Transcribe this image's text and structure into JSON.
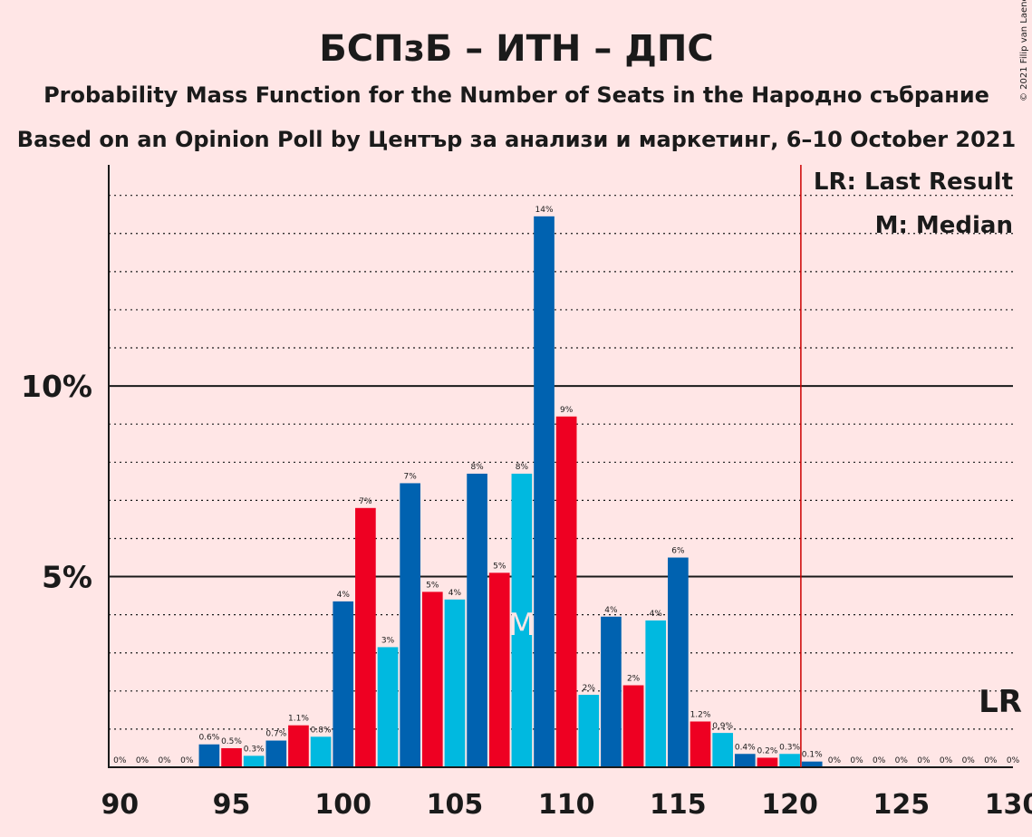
{
  "chart_data": {
    "type": "bar",
    "title": "БСПзБ – ИТН – ДПС",
    "subtitle": "Probability Mass Function for the Number of Seats in the Народно събрание",
    "subtitle2": "Based on an Opinion Poll by Център за анализи и маркетинг, 6–10 October 2021",
    "credit": "© 2021 Filip van Laenen",
    "legend": {
      "lr": "LR: Last Result",
      "m": "M: Median",
      "placement": "top-right"
    },
    "lr_marker": "LR",
    "median_marker": "M",
    "median": 108,
    "last_result": 121,
    "ylim": [
      0,
      15.8
    ],
    "ytick_values": [
      5,
      10
    ],
    "ytick_labels": [
      "5%",
      "10%"
    ],
    "xtick_values": [
      90,
      95,
      100,
      105,
      110,
      115,
      120,
      125,
      130
    ],
    "xtick_labels": [
      "90",
      "95",
      "100",
      "105",
      "110",
      "115",
      "120",
      "125",
      "130"
    ],
    "x": [
      90,
      91,
      92,
      93,
      94,
      95,
      96,
      97,
      98,
      99,
      100,
      101,
      102,
      103,
      104,
      105,
      106,
      107,
      108,
      109,
      110,
      111,
      112,
      113,
      114,
      115,
      116,
      117,
      118,
      119,
      120,
      121,
      122,
      123,
      124,
      125,
      126,
      127,
      128,
      129,
      130
    ],
    "values": [
      0,
      0,
      0,
      0,
      0.6,
      0.5,
      0.3,
      0.7,
      1.1,
      0.8,
      4.35,
      6.8,
      3.15,
      7.45,
      4.6,
      4.4,
      7.7,
      5.1,
      7.7,
      14.45,
      9.2,
      1.9,
      3.95,
      2.15,
      3.85,
      5.5,
      1.2,
      0.9,
      0.35,
      0.25,
      0.35,
      0.15,
      0,
      0,
      0,
      0,
      0,
      0,
      0,
      0,
      0
    ],
    "labels": [
      "0%",
      "0%",
      "0%",
      "0%",
      "0.6%",
      "0.5%",
      "0.3%",
      "0.7%",
      "1.1%",
      "0.8%",
      "4%",
      "7%",
      "3%",
      "7%",
      "5%",
      "4%",
      "8%",
      "5%",
      "8%",
      "14%",
      "9%",
      "2%",
      "4%",
      "2%",
      "4%",
      "6%",
      "1.2%",
      "0.9%",
      "0.4%",
      "0.2%",
      "0.3%",
      "0.1%",
      "0%",
      "0%",
      "0%",
      "0%",
      "0%",
      "0%",
      "0%",
      "0%",
      "0%"
    ],
    "colors": {
      "background": "#FFE6E6",
      "cycle": [
        "#00B9E0",
        "#0062B0",
        "#EE0022"
      ],
      "lr_line": "#CC0000",
      "axis": "#1a1a1a",
      "text": "#1a1a1a"
    }
  }
}
